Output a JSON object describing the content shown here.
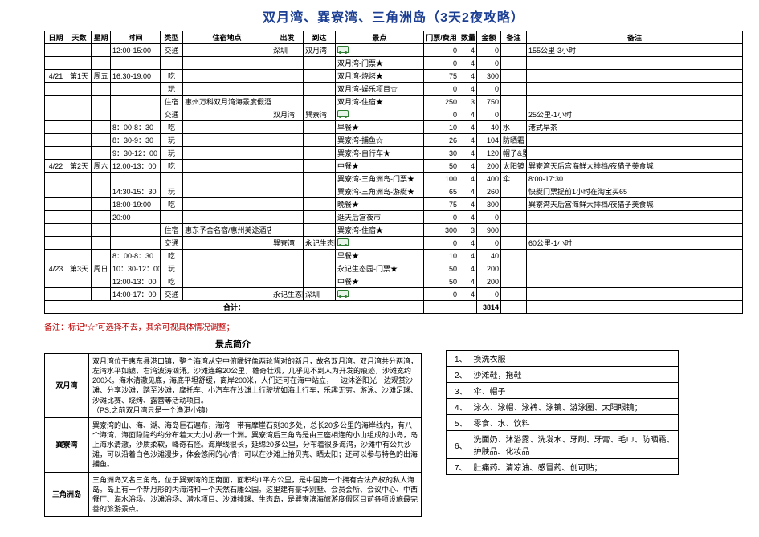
{
  "title": "双月湾、巽寮湾、三角洲岛（3天2夜攻略）",
  "headers": [
    "日期",
    "天数",
    "星期",
    "时间",
    "类型",
    "住宿地点",
    "出发",
    "到达",
    "景点",
    "门票/费用",
    "数量",
    "金额",
    "备注",
    "备注"
  ],
  "rows": [
    {
      "date": "",
      "day": "",
      "wk": "",
      "time": "12:00-15:00",
      "type": "交通",
      "stay": "",
      "dep": "深圳",
      "arr": "双月湾",
      "spot_icon": "bus",
      "spot": "",
      "fee": "0",
      "qty": "4",
      "amt": "0",
      "n1": "",
      "n2": "155公里-3小时"
    },
    {
      "date": "",
      "day": "",
      "wk": "",
      "time": "",
      "type": "",
      "stay": "",
      "dep": "",
      "arr": "",
      "spot": "双月湾-门票★",
      "fee": "0",
      "qty": "4",
      "amt": "0",
      "n1": "",
      "n2": ""
    },
    {
      "date": "4/21",
      "day": "第1天",
      "wk": "周五",
      "time": "16:30-19:00",
      "type": "吃",
      "stay": "",
      "dep": "",
      "arr": "",
      "spot": "双月湾-烧烤★",
      "fee": "75",
      "qty": "4",
      "amt": "300",
      "n1": "",
      "n2": ""
    },
    {
      "date": "",
      "day": "",
      "wk": "",
      "time": "",
      "type": "玩",
      "stay": "",
      "dep": "",
      "arr": "",
      "spot": "双月湾-娱乐项目☆",
      "fee": "0",
      "qty": "4",
      "amt": "0",
      "n1": "",
      "n2": ""
    },
    {
      "date": "",
      "day": "",
      "wk": "",
      "time": "",
      "type": "住宿",
      "stay": "惠州万科双月湾海景度假酒店",
      "dep": "",
      "arr": "",
      "spot": "双月湾-住宿★",
      "fee": "250",
      "qty": "3",
      "amt": "750",
      "n1": "",
      "n2": ""
    },
    {
      "date": "",
      "day": "",
      "wk": "",
      "time": "",
      "type": "交通",
      "stay": "",
      "dep": "双月湾",
      "arr": "巽寮湾",
      "spot_icon": "bus",
      "spot": "",
      "fee": "0",
      "qty": "4",
      "amt": "0",
      "n1": "",
      "n2": "25公里-1小时"
    },
    {
      "date": "",
      "day": "",
      "wk": "",
      "time": "8：00-8：30",
      "type": "吃",
      "stay": "",
      "dep": "",
      "arr": "",
      "spot": "早餐★",
      "fee": "10",
      "qty": "4",
      "amt": "40",
      "n1": "水",
      "n2": "港式早茶"
    },
    {
      "date": "",
      "day": "",
      "wk": "",
      "time": "8：30-9：30",
      "type": "玩",
      "stay": "",
      "dep": "",
      "arr": "",
      "spot": "巽寮湾-捕鱼☆",
      "fee": "26",
      "qty": "4",
      "amt": "104",
      "n1": "防晒霜",
      "n2": ""
    },
    {
      "date": "",
      "day": "",
      "wk": "",
      "time": "9：30-12：00",
      "type": "玩",
      "stay": "",
      "dep": "",
      "arr": "",
      "spot": "巽寮湾-自行车★",
      "fee": "30",
      "qty": "4",
      "amt": "120",
      "n1": "帽子&墨镜",
      "n2": ""
    },
    {
      "date": "4/22",
      "day": "第2天",
      "wk": "周六",
      "time": "12:00-13：00",
      "type": "吃",
      "stay": "",
      "dep": "",
      "arr": "",
      "spot": "中餐★",
      "fee": "50",
      "qty": "4",
      "amt": "200",
      "n1": "太阳镜",
      "n2": "巽寮湾天后宫海鲜大排档/夜猫子美食城",
      "n2cls": "tiny"
    },
    {
      "date": "",
      "day": "",
      "wk": "",
      "time": "",
      "type": "",
      "stay": "",
      "dep": "",
      "arr": "",
      "spot": "巽寮湾-三角洲岛-门票★",
      "fee": "100",
      "qty": "4",
      "amt": "400",
      "n1": "伞",
      "n2": "8:00-17:30"
    },
    {
      "date": "",
      "day": "",
      "wk": "",
      "time": "14:30-15：30",
      "type": "玩",
      "stay": "",
      "dep": "",
      "arr": "",
      "spot": "巽寮湾-三角洲岛-游艇★",
      "fee": "65",
      "qty": "4",
      "amt": "260",
      "n1": "",
      "n2": "快艇门票提前1小时在淘宝买65",
      "n2cls": "tiny"
    },
    {
      "date": "",
      "day": "",
      "wk": "",
      "time": "18:00-19:00",
      "type": "吃",
      "stay": "",
      "dep": "",
      "arr": "",
      "spot": "晚餐★",
      "fee": "75",
      "qty": "4",
      "amt": "300",
      "n1": "",
      "n2": "巽寮湾天后宫海鲜大排档/夜猫子美食城",
      "n2cls": "tiny"
    },
    {
      "date": "",
      "day": "",
      "wk": "",
      "time": "20:00",
      "type": "",
      "stay": "",
      "dep": "",
      "arr": "",
      "spot": "逛天后宫夜市",
      "fee": "0",
      "qty": "4",
      "amt": "0",
      "n1": "",
      "n2": ""
    },
    {
      "date": "",
      "day": "",
      "wk": "",
      "time": "",
      "type": "住宿",
      "stay": "惠东予舍名宿/惠州美途酒店",
      "dep": "",
      "arr": "",
      "spot": "巽寮湾-住宿★",
      "fee": "300",
      "qty": "3",
      "amt": "900",
      "n1": "",
      "n2": ""
    },
    {
      "date": "",
      "day": "",
      "wk": "",
      "time": "",
      "type": "交通",
      "stay": "",
      "dep": "巽寮湾",
      "arr": "永记生态园",
      "spot_icon": "bus",
      "spot": "",
      "fee": "0",
      "qty": "4",
      "amt": "0",
      "n1": "",
      "n2": "60公里-1小时"
    },
    {
      "date": "",
      "day": "",
      "wk": "",
      "time": "8：00-8：30",
      "type": "吃",
      "stay": "",
      "dep": "",
      "arr": "",
      "spot": "早餐★",
      "fee": "10",
      "qty": "4",
      "amt": "40",
      "n1": "",
      "n2": ""
    },
    {
      "date": "4/23",
      "day": "第3天",
      "wk": "周日",
      "time": "10：30-12：00",
      "type": "玩",
      "stay": "",
      "dep": "",
      "arr": "",
      "spot": "永记生态园-门票★",
      "fee": "50",
      "qty": "4",
      "amt": "200",
      "n1": "",
      "n2": ""
    },
    {
      "date": "",
      "day": "",
      "wk": "",
      "time": "12:00-13：00",
      "type": "吃",
      "stay": "",
      "dep": "",
      "arr": "",
      "spot": "中餐★",
      "fee": "50",
      "qty": "4",
      "amt": "200",
      "n1": "",
      "n2": ""
    },
    {
      "date": "",
      "day": "",
      "wk": "",
      "time": "14:00-17：00",
      "type": "交通",
      "stay": "",
      "dep": "永记生态园",
      "arr": "深圳",
      "spot_icon": "bus",
      "spot": "",
      "fee": "0",
      "qty": "4",
      "amt": "0",
      "n1": "",
      "n2": ""
    }
  ],
  "total_label": "合计：",
  "total_amount": "3814",
  "legend": "备注：标记“☆”可选择不去，其余可视具体情况调整；",
  "intro_title": "景点简介",
  "intros": [
    {
      "name": "双月湾",
      "desc": "双月湾位于惠东县港口镇，整个海湾从空中俯瞰好像两轮背对的新月，故名双月湾。双月湾共分两湾，左湾水平如镜，右湾波涛汹涌。沙滩连绵20公里，雄奇壮观，几乎见不到人为开发的痕迹，沙滩宽约200米。海水清澈见底，海底平坦舒缓，离岸200米，人们还可在海中站立，一边沐浴阳光一边观赏沙滩、分享沙滩，踏至沙滩，摩托车、小汽车在沙滩上行驶犹如海上行车，乐趣无穷。游泳、沙滩足球、沙滩比赛、烧烤、露营等活动项目。\n（PS:之前双月湾只是一个渔港小镇）"
    },
    {
      "name": "巽寮湾",
      "desc": "巽寮湾的山、海、湖、海岛巨石遍布，海湾一带有摩崖石刻30多处，总长20多公里的海岸线内，有八个海湾，海面隐隐约约分布着大大小小数十个洲。巽寮湾后三角岛是由三座相连的小山组成的小岛，岛上海水清澈，沙质柔软，峰奇石怪。海岸线很长，延绵20多公里，分布着很多海湾，沙滩中有公共沙滩，可以沿着白色沙滩漫步，体会悠闲的心情；可以在沙滩上拾贝壳、晒太阳；还可以参与特色的出海捕鱼。"
    },
    {
      "name": "三角洲岛",
      "desc": "三角洲岛又名三角岛，位于巽寮湾的正南面，面积约1平方公里，是中国第一个拥有合法产权的私人海岛。岛上有一个新月形的内海湾和一个天然石雕公园。这里建有豪华别墅、会员会所、会议中心、中西餐厅、海水浴场、沙滩浴场、潜水项目、沙滩排球、生态岛，是巽寮滨海旅游度假区目前各项设施最完善的旅游景点。"
    }
  ],
  "checklist": [
    {
      "n": "1、",
      "t": "换洗衣服"
    },
    {
      "n": "2、",
      "t": "沙滩鞋，拖鞋"
    },
    {
      "n": "3、",
      "t": "伞、帽子"
    },
    {
      "n": "4、",
      "t": "泳衣、泳帽、泳裤、泳镜、游泳圈、太阳眼镜；"
    },
    {
      "n": "5、",
      "t": "零食、水、饮料"
    },
    {
      "n": "6、",
      "t": "洗面奶、沐浴露、洗发水、牙刷、牙膏、毛巾、防晒霜、护肤品、化妆品"
    },
    {
      "n": "7、",
      "t": "肚痛药、清凉油、感冒药、创可贴；"
    }
  ]
}
